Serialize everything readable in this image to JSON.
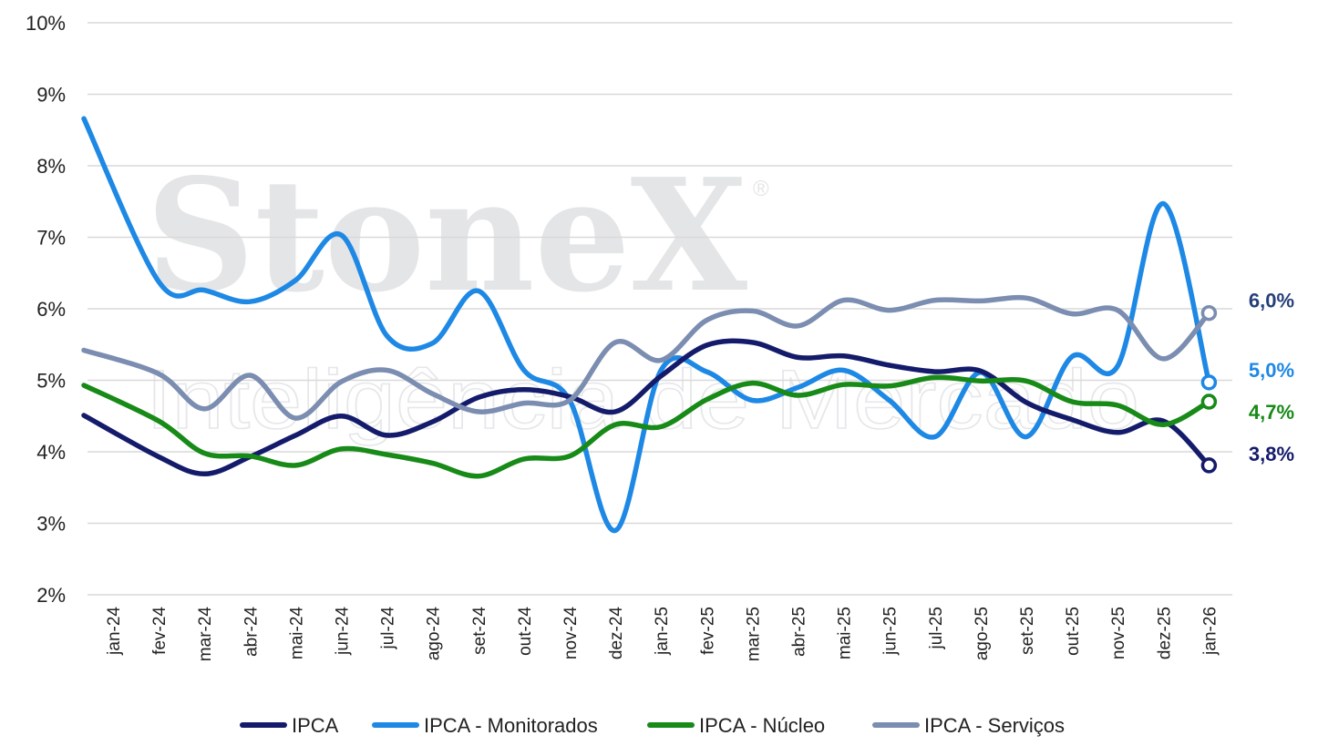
{
  "watermark": {
    "brand": "StoneX",
    "registered": "®",
    "tagline": "Inteligência de Mercado"
  },
  "chart_data": {
    "type": "line",
    "categories": [
      "jan-24",
      "fev-24",
      "mar-24",
      "abr-24",
      "mai-24",
      "jun-24",
      "jul-24",
      "ago-24",
      "set-24",
      "out-24",
      "nov-24",
      "dez-24",
      "jan-25",
      "fev-25",
      "mar-25",
      "abr-25",
      "mai-25",
      "jun-25",
      "jul-25",
      "ago-25",
      "set-25",
      "out-25",
      "nov-25",
      "dez-25",
      "jan-26"
    ],
    "yticks": [
      "2%",
      "3%",
      "4%",
      "5%",
      "6%",
      "7%",
      "8%",
      "9%",
      "10%"
    ],
    "ylim": [
      2,
      10
    ],
    "grid": true,
    "legend_position": "bottom",
    "series": [
      {
        "name": "IPCA",
        "color": "#141b6b",
        "end_label": "3,8%",
        "end_label_color": "#141b6b",
        "values": [
          4.51,
          3.93,
          3.69,
          3.93,
          4.23,
          4.5,
          4.23,
          4.42,
          4.76,
          4.87,
          4.77,
          4.56,
          5.06,
          5.49,
          5.53,
          5.32,
          5.34,
          5.21,
          5.12,
          5.13,
          4.69,
          4.45,
          4.27,
          4.43,
          3.81
        ]
      },
      {
        "name": "IPCA - Monitorados",
        "color": "#1e88e5",
        "end_label": "5,0%",
        "end_label_color": "#1e88e5",
        "values": [
          8.66,
          6.38,
          6.26,
          6.1,
          6.4,
          7.03,
          5.62,
          5.52,
          6.25,
          5.14,
          4.72,
          2.9,
          5.14,
          5.12,
          4.72,
          4.9,
          5.14,
          4.72,
          4.21,
          5.11,
          4.21,
          5.33,
          5.2,
          7.47,
          4.97
        ]
      },
      {
        "name": "IPCA - Núcleo",
        "color": "#178a17",
        "end_label": "4,7%",
        "end_label_color": "#178a17",
        "values": [
          4.93,
          4.43,
          3.98,
          3.94,
          3.81,
          4.04,
          3.96,
          3.84,
          3.66,
          3.9,
          3.94,
          4.38,
          4.35,
          4.73,
          4.96,
          4.79,
          4.94,
          4.92,
          5.04,
          4.99,
          4.99,
          4.7,
          4.65,
          4.38,
          4.7
        ]
      },
      {
        "name": "IPCA - Serviços",
        "color": "#7b8db0",
        "end_label": "6,0%",
        "end_label_color": "#253f7a",
        "values": [
          5.42,
          5.09,
          4.6,
          5.07,
          4.47,
          4.98,
          5.14,
          4.81,
          4.56,
          4.68,
          4.72,
          5.53,
          5.28,
          5.84,
          5.97,
          5.76,
          6.12,
          5.98,
          6.12,
          6.11,
          6.15,
          5.93,
          5.98,
          5.3,
          5.94
        ]
      }
    ]
  }
}
